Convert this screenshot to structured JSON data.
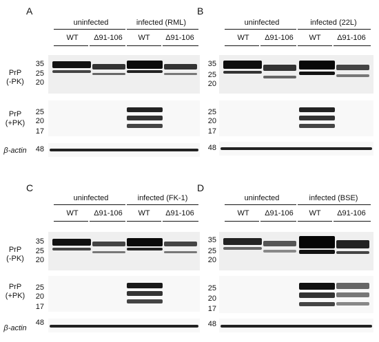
{
  "panels": [
    {
      "letter": "A",
      "uninfected_label": "uninfected",
      "infected_label": "infected (RML)",
      "genotypes": [
        "WT",
        "Δ91-106",
        "WT",
        "Δ91-106"
      ],
      "mw_top": [
        "35",
        "25",
        "20"
      ],
      "mw_mid": [
        "25",
        "20",
        "17"
      ],
      "mw_bot": [
        "48"
      ]
    },
    {
      "letter": "B",
      "uninfected_label": "uninfected",
      "infected_label": "infected (22L)",
      "genotypes": [
        "WT",
        "Δ91-106",
        "WT",
        "Δ91-106"
      ],
      "mw_top": [
        "35",
        "25",
        "20"
      ],
      "mw_mid": [
        "25",
        "20",
        "17"
      ],
      "mw_bot": [
        "48"
      ]
    },
    {
      "letter": "C",
      "uninfected_label": "uninfected",
      "infected_label": "infected (FK-1)",
      "genotypes": [
        "WT",
        "Δ91-106",
        "WT",
        "Δ91-106"
      ],
      "mw_top": [
        "35",
        "25",
        "20"
      ],
      "mw_mid": [
        "25",
        "20",
        "17"
      ],
      "mw_bot": [
        "48"
      ]
    },
    {
      "letter": "D",
      "uninfected_label": "uninfected",
      "infected_label": "infected (BSE)",
      "genotypes": [
        "WT",
        "Δ91-106",
        "WT",
        "Δ91-106"
      ],
      "mw_top": [
        "35",
        "25",
        "20"
      ],
      "mw_mid": [
        "25",
        "20",
        "17"
      ],
      "mw_bot": [
        "48"
      ]
    }
  ],
  "row_labels": {
    "prp_minus_line1": "PrP",
    "prp_minus_line2": "(-PK)",
    "prp_plus_line1": "PrP",
    "prp_plus_line2": "(+PK)",
    "actin": "β-actin"
  }
}
